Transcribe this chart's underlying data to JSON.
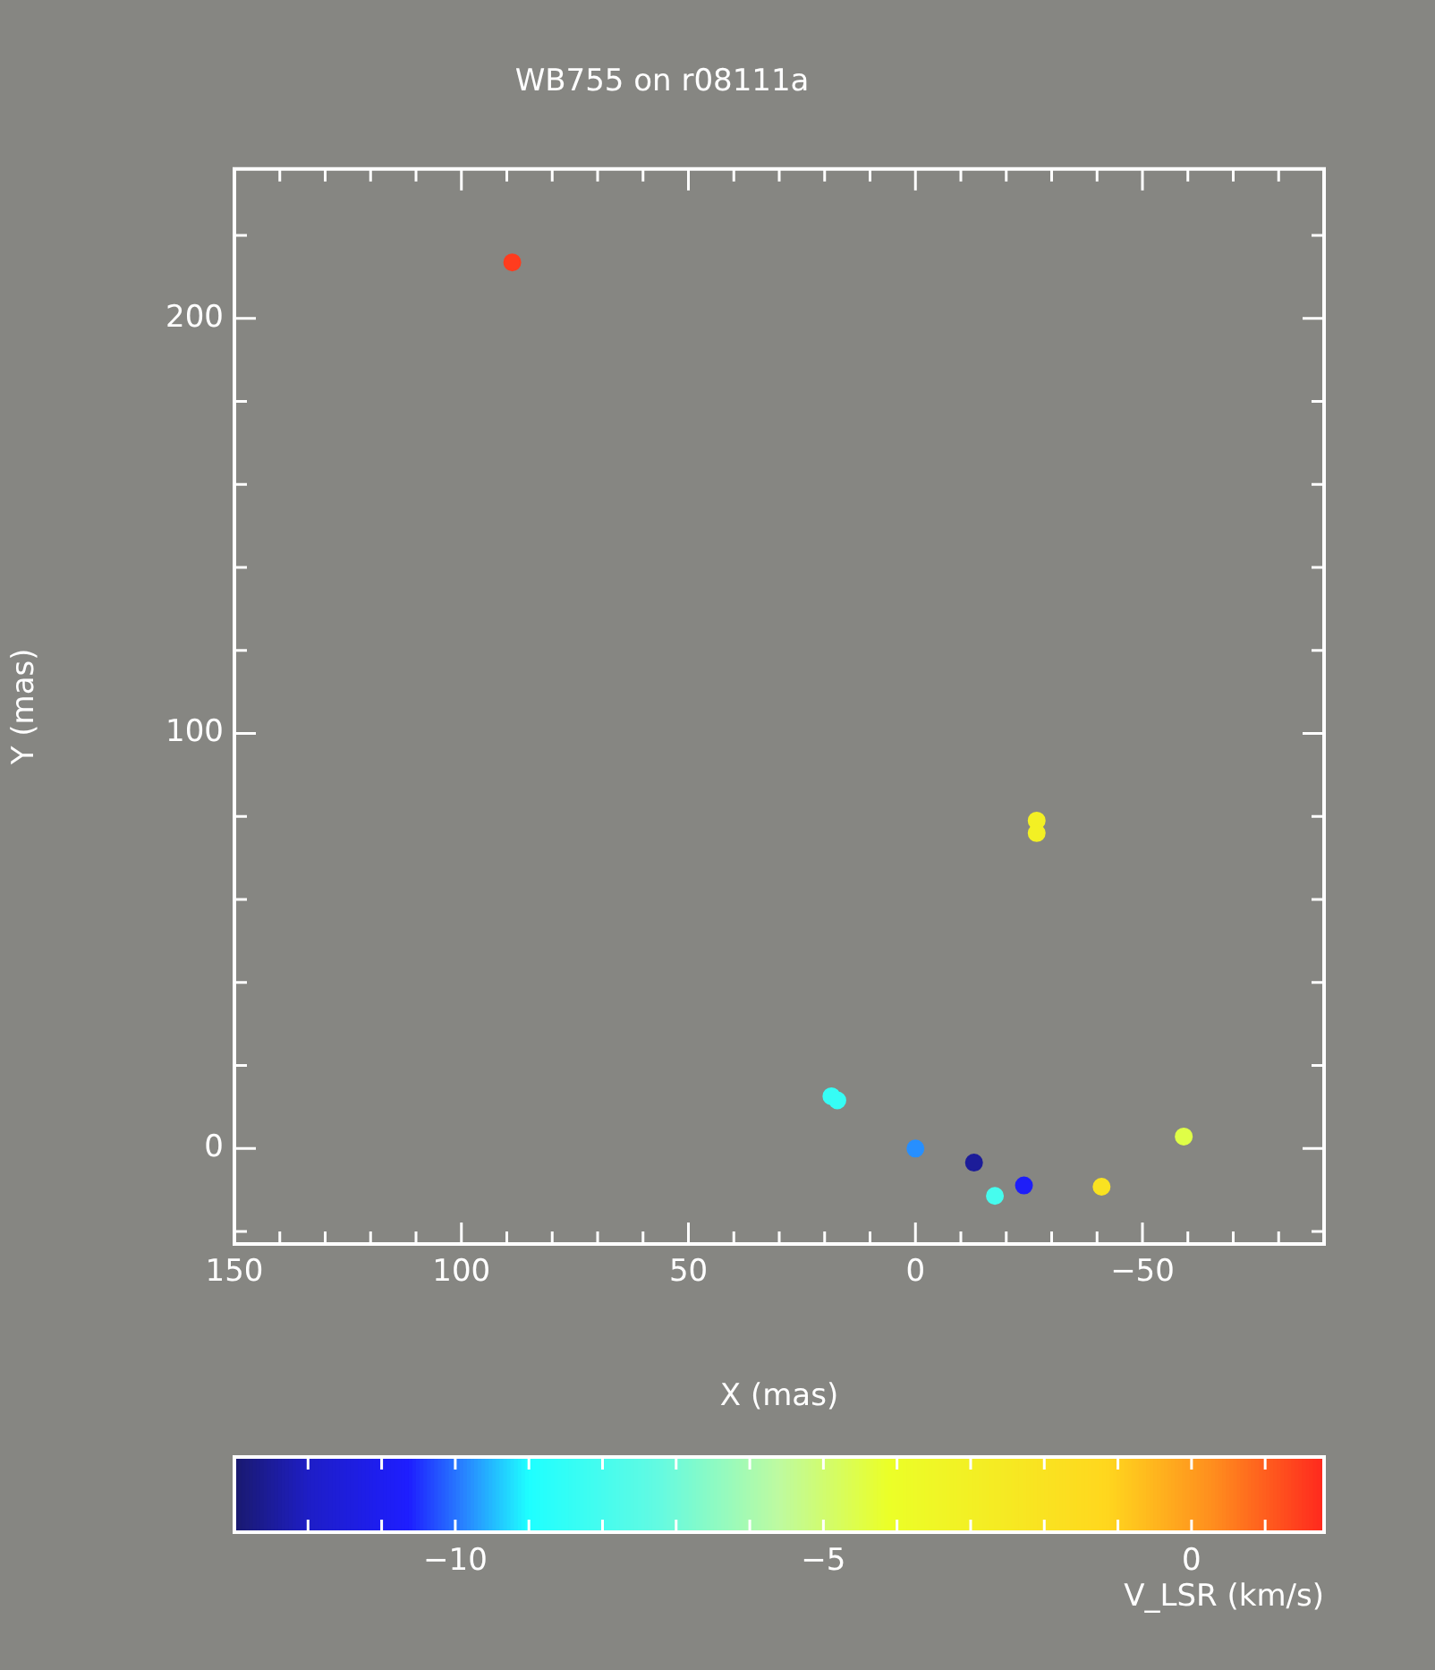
{
  "chart_data": {
    "type": "scatter",
    "title": "WB755 on r08111a",
    "xlabel": "X (mas)",
    "ylabel": "Y (mas)",
    "clabel": "V_LSR (km/s)",
    "x": [
      88.8,
      -26.7,
      -26.7,
      18.5,
      17.2,
      0,
      -12.9,
      -17.5,
      -23.9,
      -41,
      -59.1
    ],
    "series": [
      {
        "values": [
          213.5,
          79,
          76,
          12.6,
          11.6,
          0,
          -3.4,
          -11.4,
          -8.9,
          -9.2,
          2.9
        ],
        "cvalues": [
          1.5,
          -3,
          -3,
          -8.4,
          -8.4,
          -9.8,
          -12.5,
          -8,
          -10.8,
          -2,
          -4.5
        ]
      }
    ],
    "marker": "circle",
    "grid": false,
    "legend": false,
    "xlim": [
      150,
      -90
    ],
    "ylim": [
      -23,
      236
    ],
    "clim": [
      -13,
      1.8
    ],
    "xticks": [
      150,
      {
        "value": 140,
        "label": null
      },
      {
        "value": 130,
        "label": null
      },
      {
        "value": 120,
        "label": null
      },
      {
        "value": 110,
        "label": null
      },
      100,
      {
        "value": 90,
        "label": null
      },
      {
        "value": 80,
        "label": null
      },
      {
        "value": 70,
        "label": null
      },
      {
        "value": 60,
        "label": null
      },
      50,
      {
        "value": 40,
        "label": null
      },
      {
        "value": 30,
        "label": null
      },
      {
        "value": 20,
        "label": null
      },
      {
        "value": 10,
        "label": null
      },
      0,
      {
        "value": -10,
        "label": null
      },
      {
        "value": -20,
        "label": null
      },
      {
        "value": -30,
        "label": null
      },
      {
        "value": -40,
        "label": null
      },
      -50,
      {
        "value": -60,
        "label": null
      },
      {
        "value": -70,
        "label": null
      },
      {
        "value": -80,
        "label": null
      }
    ],
    "yticks": [
      {
        "value": -20,
        "label": null
      },
      0,
      {
        "value": 20,
        "label": null
      },
      {
        "value": 40,
        "label": null
      },
      {
        "value": 60,
        "label": null
      },
      {
        "value": 80,
        "label": null
      },
      100,
      {
        "value": 120,
        "label": null
      },
      {
        "value": 140,
        "label": null
      },
      {
        "value": 160,
        "label": null
      },
      {
        "value": 180,
        "label": null
      },
      200,
      {
        "value": 220,
        "label": null
      }
    ],
    "cticks": [
      {
        "value": -12,
        "label": null
      },
      {
        "value": -11,
        "label": null
      },
      -10,
      {
        "value": -9,
        "label": null
      },
      {
        "value": -8,
        "label": null
      },
      {
        "value": -7,
        "label": null
      },
      {
        "value": -6,
        "label": null
      },
      -5,
      {
        "value": -4,
        "label": null
      },
      {
        "value": -3,
        "label": null
      },
      {
        "value": -2,
        "label": null
      },
      {
        "value": -1,
        "label": null
      },
      0,
      {
        "value": 1,
        "label": null
      }
    ]
  }
}
